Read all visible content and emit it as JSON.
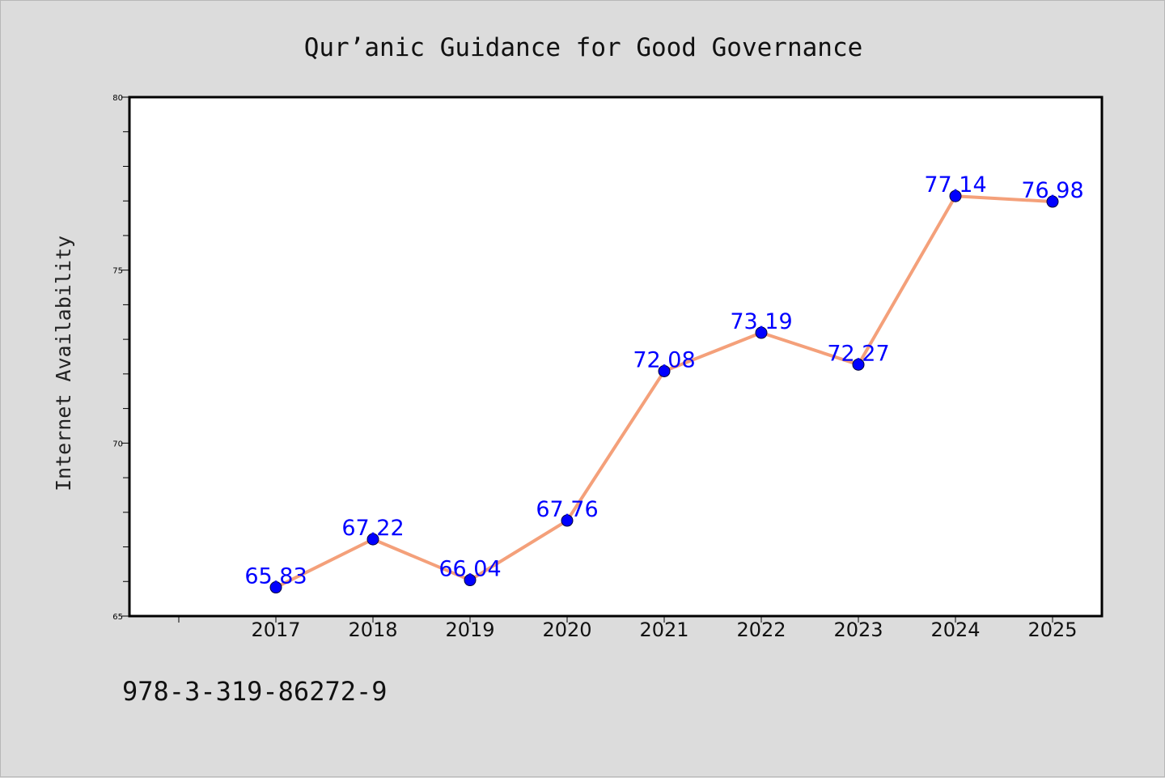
{
  "chart_data": {
    "type": "line",
    "title": "Qur’anic Guidance for Good Governance",
    "xlabel": "",
    "ylabel": "Internet Availability",
    "categories": [
      "2017",
      "2018",
      "2019",
      "2020",
      "2021",
      "2022",
      "2023",
      "2024",
      "2025"
    ],
    "series": [
      {
        "values": [
          65.83,
          67.22,
          66.04,
          67.76,
          72.08,
          73.19,
          72.27,
          77.14,
          76.98
        ],
        "data_labels": [
          "65.83",
          "67.22",
          "66.04",
          "67.76",
          "72.08",
          "73.19",
          "72.27",
          "77.14",
          "76.98"
        ]
      }
    ],
    "ylim": [
      65,
      80
    ],
    "y_ticks": [
      65,
      70,
      75,
      80
    ],
    "y_tick_labels": [
      "65",
      "70",
      "75",
      "80"
    ],
    "y_minor_step": 1,
    "grid": false,
    "legend": "none",
    "colors": {
      "line": "#f4a07a",
      "marker": "#0000ff",
      "data_label": "#0000ff",
      "plot_background": "#ffffff",
      "figure_background": "#dcdcdc"
    }
  },
  "footer": {
    "isbn": "978-3-319-86272-9"
  }
}
